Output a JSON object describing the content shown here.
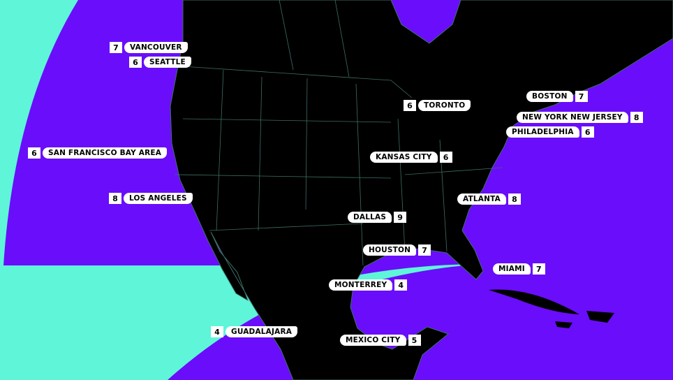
{
  "colors": {
    "background": "#6a0dfa",
    "accent": "#5ef5d8",
    "land": "#000000",
    "borders": "#3c6e66",
    "label": "#ffffff"
  },
  "cities": [
    {
      "name": "VANCOUVER",
      "matches": "7",
      "number_side": "left"
    },
    {
      "name": "SEATTLE",
      "matches": "6",
      "number_side": "left"
    },
    {
      "name": "SAN FRANCISCO BAY AREA",
      "matches": "6",
      "number_side": "left"
    },
    {
      "name": "LOS ANGELES",
      "matches": "8",
      "number_side": "left"
    },
    {
      "name": "TORONTO",
      "matches": "6",
      "number_side": "left"
    },
    {
      "name": "GUADALAJARA",
      "matches": "4",
      "number_side": "left"
    },
    {
      "name": "BOSTON",
      "matches": "7",
      "number_side": "right"
    },
    {
      "name": "NEW YORK NEW JERSEY",
      "matches": "8",
      "number_side": "right"
    },
    {
      "name": "PHILADELPHIA",
      "matches": "6",
      "number_side": "right"
    },
    {
      "name": "KANSAS CITY",
      "matches": "6",
      "number_side": "right"
    },
    {
      "name": "ATLANTA",
      "matches": "8",
      "number_side": "right"
    },
    {
      "name": "DALLAS",
      "matches": "9",
      "number_side": "right"
    },
    {
      "name": "HOUSTON",
      "matches": "7",
      "number_side": "right"
    },
    {
      "name": "MIAMI",
      "matches": "7",
      "number_side": "right"
    },
    {
      "name": "MONTERREY",
      "matches": "4",
      "number_side": "right"
    },
    {
      "name": "MEXICO CITY",
      "matches": "5",
      "number_side": "right"
    }
  ]
}
